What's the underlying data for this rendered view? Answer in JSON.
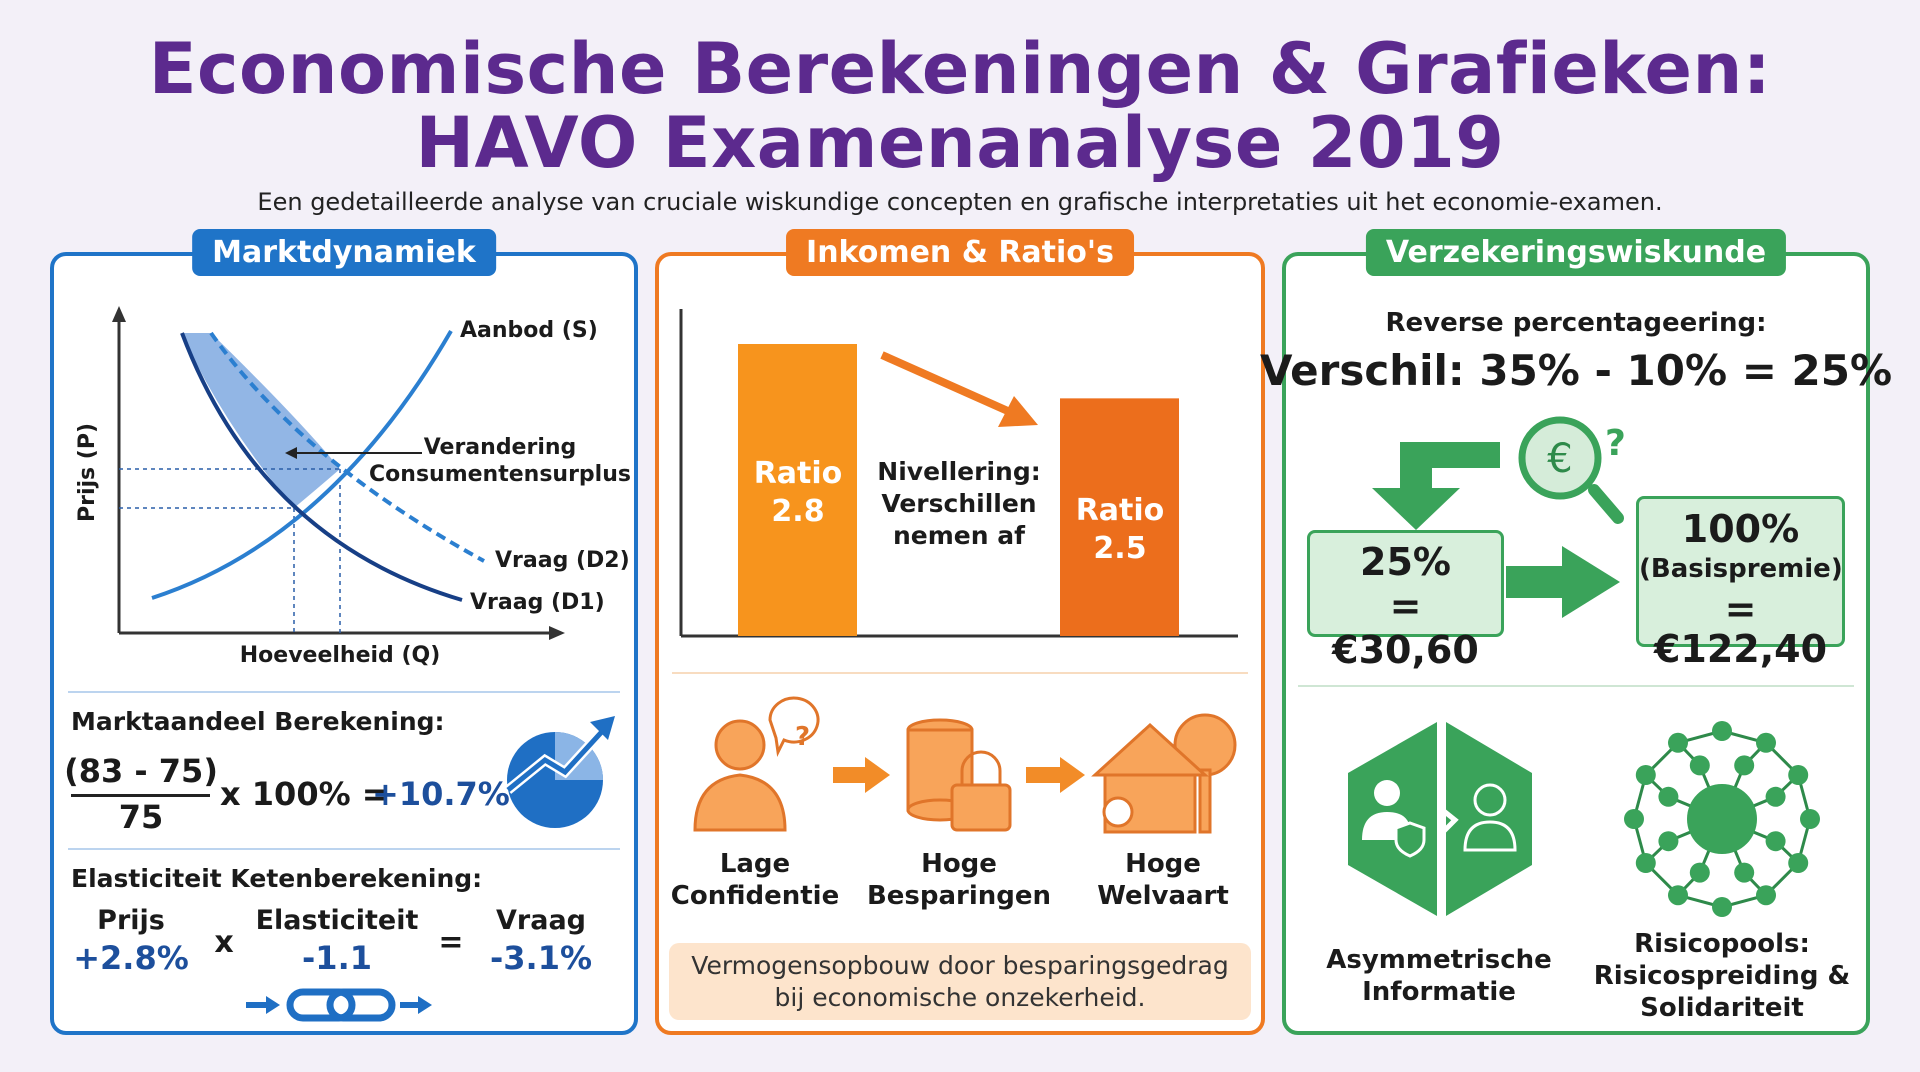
{
  "header": {
    "title_line1": "Economische Berekeningen & Grafieken:",
    "title_line2": "HAVO Examenanalyse 2019",
    "subtitle": "Een gedetailleerde analyse van cruciale wiskundige concepten en grafische interpretaties uit het economie-examen."
  },
  "colors": {
    "title": "#5c2a8e",
    "blue": "#1f74c8",
    "navy": "#1d3f8a",
    "orange": "#ef7a22",
    "green": "#3aa35a"
  },
  "market": {
    "heading": "Marktdynamiek",
    "chart": {
      "y_label": "Prijs (P)",
      "x_label": "Hoeveelheid (Q)",
      "supply": "Aanbod (S)",
      "demand2": "Vraag (D2)",
      "demand1": "Vraag (D1)",
      "annotation_line1": "Verandering",
      "annotation_line2": "Consumentensurplus"
    },
    "share": {
      "title": "Marktaandeel Berekening:",
      "numerator": "(83 - 75)",
      "denominator": "75",
      "multiplier": "x 100% =",
      "result": "+10.7%"
    },
    "elasticity": {
      "title": "Elasticiteit Ketenberekening:",
      "price_label": "Prijs",
      "price_value": "+2.8%",
      "times": "x",
      "elasticity_label": "Elasticiteit",
      "elasticity_value": "-1.1",
      "equals": "=",
      "demand_label": "Vraag",
      "demand_value": "-3.1%"
    }
  },
  "income": {
    "heading": "Inkomen & Ratio's",
    "bars": [
      {
        "label": "Ratio",
        "value": "2.8",
        "num": 2.8
      },
      {
        "label": "Ratio",
        "value": "2.5",
        "num": 2.5
      }
    ],
    "arrow_text": [
      "Nivellering:",
      "Verschillen",
      "nemen af"
    ],
    "flow": [
      {
        "line1": "Lage",
        "line2": "Confidentie"
      },
      {
        "line1": "Hoge",
        "line2": "Besparingen"
      },
      {
        "line1": "Hoge",
        "line2": "Welvaart"
      }
    ],
    "note_line1": "Vermogensopbouw door besparingsgedrag",
    "note_line2": "bij economische onzekerheid."
  },
  "insurance": {
    "heading": "Verzekeringswiskunde",
    "subtitle": "Reverse percentageering:",
    "formula": "Verschil: 35% - 10% = 25%",
    "box1_line1": "25%",
    "box1_line2": "= €30,60",
    "box2_line1": "100%",
    "box2_line2": "(Basispremie)",
    "box2_line3": "= €122,40",
    "item1": [
      "Asymmetrische",
      "Informatie"
    ],
    "item2": [
      "Risicopools:",
      "Risicospreiding &",
      "Solidariteit"
    ]
  }
}
